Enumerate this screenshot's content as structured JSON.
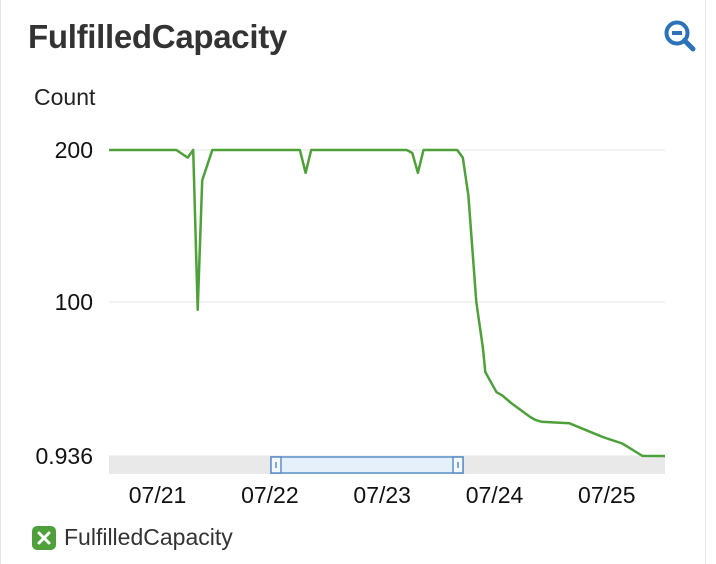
{
  "title": "FulfilledCapacity",
  "zoom_icon": "zoom-out-icon",
  "colors": {
    "series": "#4ea03b",
    "grid": "#e6e6e6",
    "navigator": "#e9e9e9",
    "handle": "#5b8fc9",
    "zoom": "#2b72b8"
  },
  "legend": {
    "label": "FulfilledCapacity",
    "icon": "checkbox-x-icon"
  },
  "chart_data": {
    "type": "line",
    "ylabel": "Count",
    "xlabel": "",
    "yticks": [
      "200",
      "100",
      "0.936"
    ],
    "xticks": [
      "07/21",
      "07/22",
      "07/23",
      "07/24",
      "07/25"
    ],
    "x_tick_positions_days": [
      21,
      22,
      23,
      24,
      25
    ],
    "ylim": [
      0.936,
      200
    ],
    "grid": true,
    "legend_position": "bottom-left",
    "series": [
      {
        "name": "FulfilledCapacity",
        "x_days": [
          20.55,
          21.15,
          21.25,
          21.3,
          21.34,
          21.38,
          21.47,
          22.25,
          22.3,
          22.35,
          23.2,
          23.25,
          23.3,
          23.35,
          23.65,
          23.7,
          23.75,
          23.82,
          23.88,
          23.9,
          24.0,
          24.05,
          24.13,
          24.3,
          24.35,
          24.4,
          24.65,
          24.95,
          25.12,
          25.3,
          25.5
        ],
        "values": [
          200,
          200,
          195,
          200,
          95,
          180,
          200,
          200,
          185,
          200,
          200,
          198,
          185,
          200,
          200,
          195,
          170,
          100,
          70,
          55,
          42,
          40,
          35,
          26,
          24,
          23,
          22,
          13,
          9,
          1,
          0.936
        ]
      }
    ]
  }
}
